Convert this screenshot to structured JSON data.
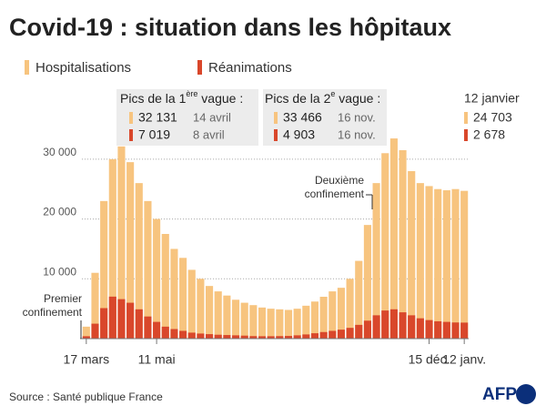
{
  "chart_data": {
    "type": "bar",
    "title": "Covid-19 : situation dans les hôpitaux",
    "source": "Source : Santé publique France",
    "logo": "AFP",
    "categories": [
      "17 mars",
      null,
      null,
      null,
      null,
      null,
      null,
      null,
      "11 mai",
      null,
      null,
      null,
      null,
      null,
      null,
      null,
      null,
      null,
      null,
      null,
      null,
      null,
      null,
      null,
      null,
      null,
      null,
      null,
      null,
      null,
      null,
      null,
      null,
      null,
      null,
      null,
      null,
      null,
      null,
      "15 déc.",
      null,
      null,
      null,
      "12 janv."
    ],
    "series": [
      {
        "name": "Hospitalisations",
        "color": "#f7c47f",
        "values": [
          2000,
          11000,
          23000,
          30000,
          32131,
          29500,
          26000,
          23000,
          20000,
          17500,
          15000,
          13500,
          11500,
          10000,
          8800,
          7900,
          7200,
          6500,
          6000,
          5600,
          5200,
          5000,
          4900,
          4800,
          5000,
          5500,
          6200,
          7000,
          7900,
          8500,
          10000,
          13000,
          19000,
          26000,
          31000,
          33466,
          31500,
          28000,
          26000,
          25500,
          25000,
          24800,
          25000,
          24703
        ],
        "value_labels": [
          null,
          null,
          null,
          null,
          "32 131",
          null,
          null,
          null,
          null,
          null,
          null,
          null,
          null,
          null,
          null,
          null,
          null,
          null,
          null,
          null,
          null,
          null,
          null,
          null,
          null,
          null,
          null,
          null,
          null,
          null,
          null,
          null,
          null,
          null,
          null,
          "33 466",
          null,
          null,
          null,
          null,
          null,
          null,
          null,
          "24 703"
        ]
      },
      {
        "name": "Réanimations",
        "color": "#d9472b",
        "values": [
          400,
          2500,
          5100,
          7019,
          6600,
          6000,
          4900,
          3700,
          2800,
          2000,
          1600,
          1300,
          1000,
          850,
          750,
          650,
          600,
          550,
          500,
          420,
          400,
          400,
          420,
          450,
          550,
          700,
          900,
          1100,
          1300,
          1500,
          1800,
          2300,
          3000,
          3900,
          4700,
          4903,
          4400,
          3900,
          3400,
          3100,
          2900,
          2800,
          2700,
          2678
        ],
        "value_labels": [
          null,
          null,
          null,
          "7 019",
          null,
          null,
          null,
          null,
          null,
          null,
          null,
          null,
          null,
          null,
          null,
          null,
          null,
          null,
          null,
          null,
          null,
          null,
          null,
          null,
          null,
          null,
          null,
          null,
          null,
          null,
          null,
          null,
          null,
          null,
          null,
          "4 903",
          null,
          null,
          null,
          null,
          null,
          null,
          null,
          "2 678"
        ]
      }
    ],
    "ylim": [
      0,
      35000
    ],
    "yticks": [
      {
        "value": 10000,
        "label": "10 000"
      },
      {
        "value": 20000,
        "label": "20 000"
      },
      {
        "value": 30000,
        "label": "30 000"
      }
    ],
    "grid": true,
    "annotations": {
      "first_wave": {
        "title": [
          "Pics de la 1",
          "ère",
          " vague :"
        ],
        "dates": [
          "14 avril",
          "8 avril"
        ]
      },
      "second_wave": {
        "title": [
          "Pics de la 2",
          "e",
          " vague :"
        ],
        "dates": [
          "16 nov.",
          "16 nov."
        ]
      },
      "latest": "12 janvier",
      "lockdown1": [
        "Premier",
        "confinement"
      ],
      "lockdown2": [
        "Deuxième",
        "confinement"
      ]
    }
  }
}
